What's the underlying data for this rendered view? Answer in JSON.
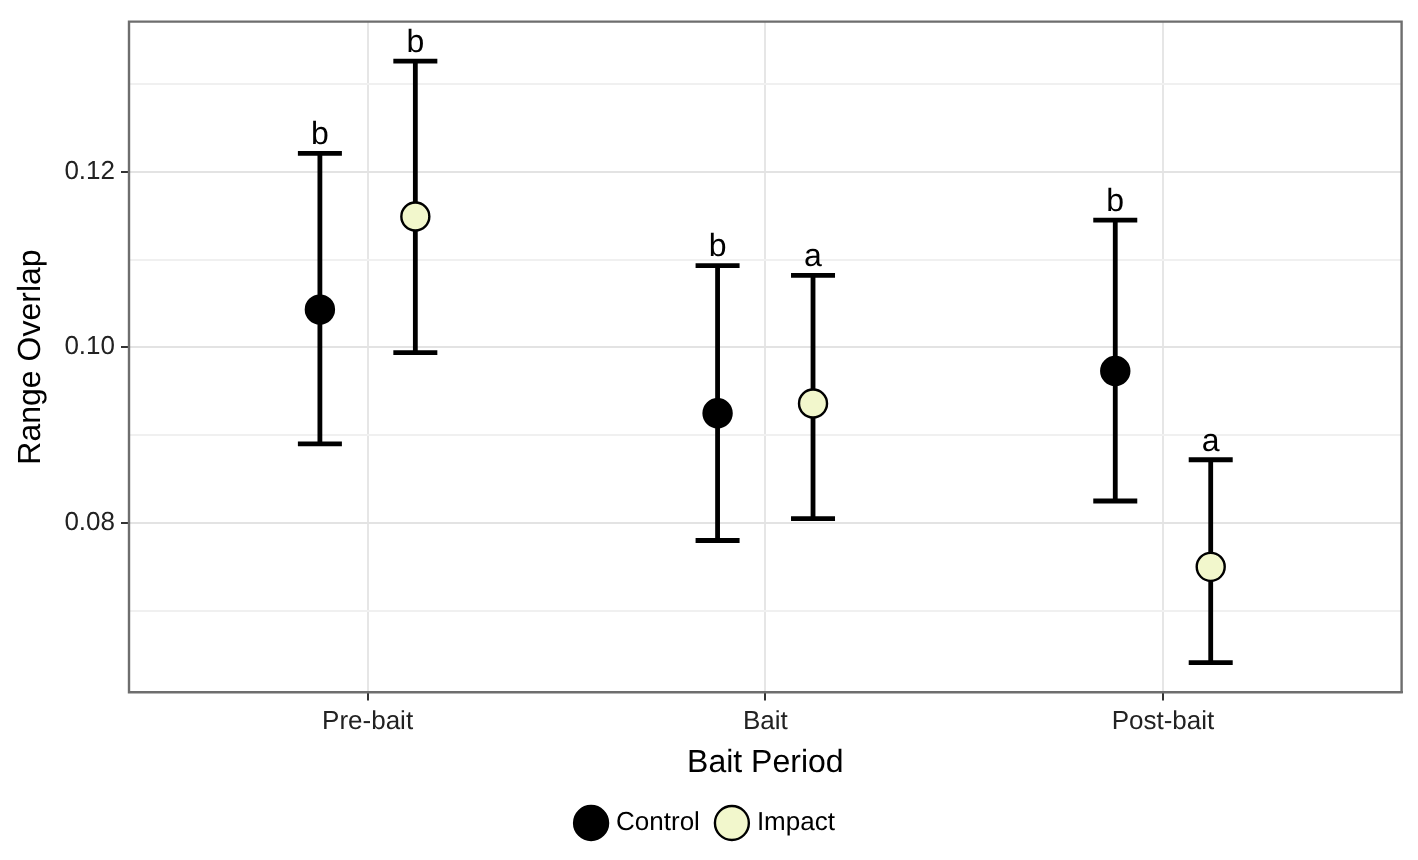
{
  "chart_data": {
    "type": "scatter",
    "xlabel": "Bait Period",
    "ylabel": "Range Overlap",
    "categories": [
      "Pre-bait",
      "Bait",
      "Post-bait"
    ],
    "series": [
      {
        "name": "Control",
        "color": "#000000",
        "values": [
          0.1043,
          0.0925,
          0.0973
        ],
        "errors": [
          [
            0.089,
            0.1221
          ],
          [
            0.078,
            0.1093
          ],
          [
            0.0825,
            0.1145
          ]
        ]
      },
      {
        "name": "Impact",
        "color": "#f2f7cc",
        "values": [
          0.1149,
          0.0936,
          0.075
        ],
        "errors": [
          [
            0.0994,
            0.1326
          ],
          [
            0.0805,
            0.1082
          ],
          [
            0.0641,
            0.0872
          ]
        ]
      }
    ],
    "annotations": [
      "b",
      "b",
      "b",
      "a",
      "b",
      "a"
    ],
    "ylim": [
      0.0607,
      0.1371
    ],
    "yticks": [
      {
        "value": 0.07,
        "label": null
      },
      {
        "value": 0.08,
        "label": "0.08"
      },
      {
        "value": 0.09,
        "label": null
      },
      {
        "value": 0.1,
        "label": "0.10"
      },
      {
        "value": 0.11,
        "label": null
      },
      {
        "value": 0.12,
        "label": "0.12"
      },
      {
        "value": 0.13,
        "label": null
      }
    ],
    "grid": true,
    "legend": "bottom",
    "marker": "circle"
  }
}
